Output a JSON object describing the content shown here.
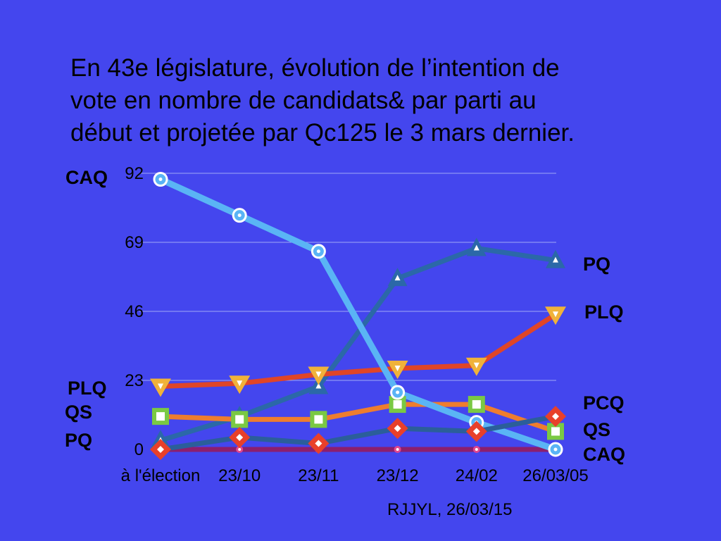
{
  "title_lines": [
    "En 43e législature, évolution de l’intention de",
    "vote en nombre de candidats& par parti au",
    "début et projetée par Qc125 le 3 mars dernier."
  ],
  "credit": "RJJYL, 26/03/15",
  "colors": {
    "background": "#4446EE",
    "CAQ": "#5AB4F5",
    "PQ": "#2B68A8",
    "PLQ": "#E04527",
    "QS": "#EE7D2E",
    "PCQ": "#8C1F6E",
    "gridline": "#9FA8F7"
  },
  "left_labels": [
    "CAQ",
    "PLQ",
    "QS",
    "PQ"
  ],
  "right_labels": [
    "PQ",
    "PLQ",
    "PCQ",
    "QS",
    "CAQ"
  ],
  "chart_data": {
    "type": "line",
    "categories": [
      "à l'élection",
      "23/10",
      "23/11",
      "23/12",
      "24/02",
      "26/03/05"
    ],
    "yticks": [
      0,
      23,
      46,
      69,
      92
    ],
    "ylim": [
      0,
      92
    ],
    "grid": true,
    "series": [
      {
        "name": "PCQ",
        "values": [
          0,
          0,
          0,
          0,
          0,
          0
        ],
        "marker": "dot",
        "line_color": "#8C1F6E",
        "marker_color": "#E0468F"
      },
      {
        "name": "PQ",
        "values": [
          3,
          11,
          21,
          57,
          67,
          63
        ],
        "marker": "triangle-up",
        "line_color": "#2B68A8",
        "marker_color": "#2B68A8"
      },
      {
        "name": "QS",
        "values": [
          11,
          10,
          10,
          15,
          15,
          6
        ],
        "marker": "square",
        "line_color": "#EE7D2E",
        "marker_color": "#7AC943"
      },
      {
        "name": "PLQ",
        "values": [
          21,
          22,
          25,
          27,
          28,
          45
        ],
        "marker": "triangle-down",
        "line_color": "#E04527",
        "marker_color": "#F0B23A"
      },
      {
        "name": "CAQ",
        "values": [
          90,
          78,
          66,
          19,
          9,
          0
        ],
        "marker": "circle",
        "line_color": "#5AB4F5",
        "marker_color": "#5AB4F5"
      },
      {
        "name": "",
        "values": [
          0,
          4,
          2,
          7,
          6,
          11
        ],
        "marker": "diamond",
        "line_color": "#2B5E9A",
        "marker_color": "#E8402A"
      }
    ]
  }
}
